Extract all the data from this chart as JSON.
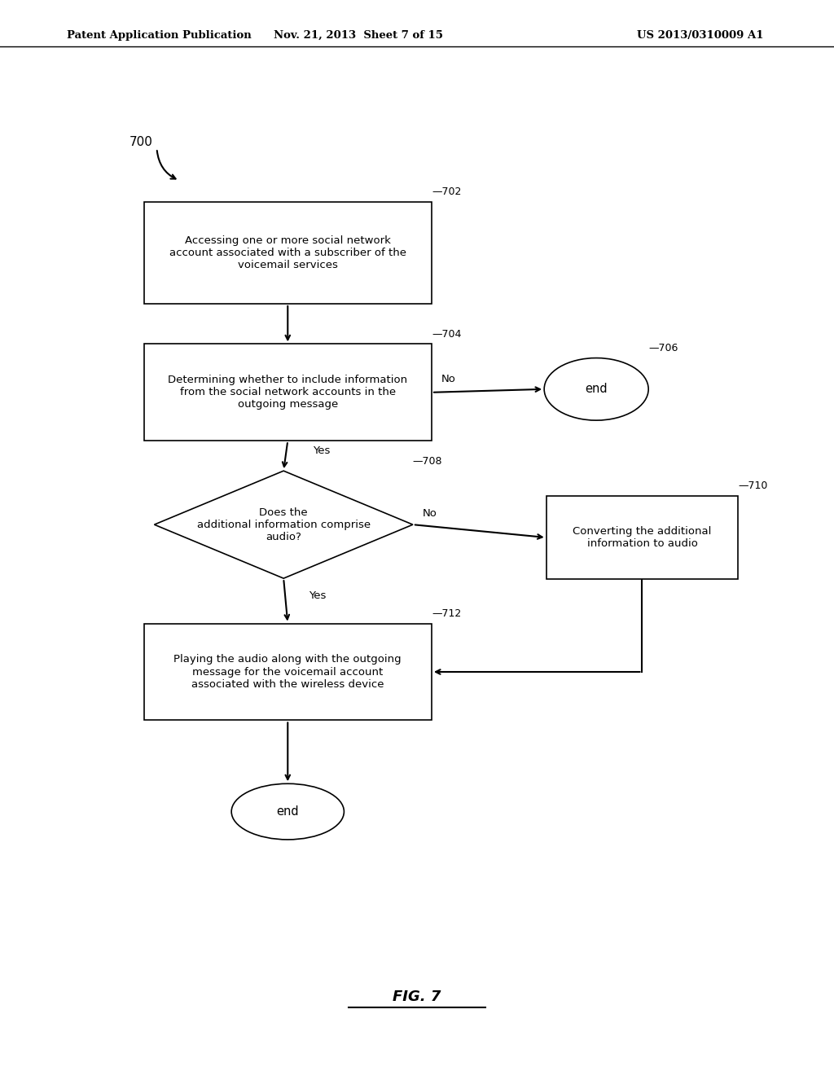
{
  "background_color": "#ffffff",
  "header_left": "Patent Application Publication",
  "header_center": "Nov. 21, 2013  Sheet 7 of 15",
  "header_right": "US 2013/0310009 A1",
  "figure_label": "FIG. 7",
  "diagram_label": "700",
  "box702_text": "Accessing one or more social network\naccount associated with a subscriber of the\nvoicemail services",
  "box704_text": "Determining whether to include information\nfrom the social network accounts in the\noutgoing message",
  "box706_text": "end",
  "box708_text": "Does the\nadditional information comprise\naudio?",
  "box710_text": "Converting the additional\ninformation to audio",
  "box712_text": "Playing the audio along with the outgoing\nmessage for the voicemail account\nassociated with the wireless device",
  "end_text": "end",
  "label702": "702",
  "label704": "704",
  "label706": "706",
  "label708": "708",
  "label710": "710",
  "label712": "712"
}
